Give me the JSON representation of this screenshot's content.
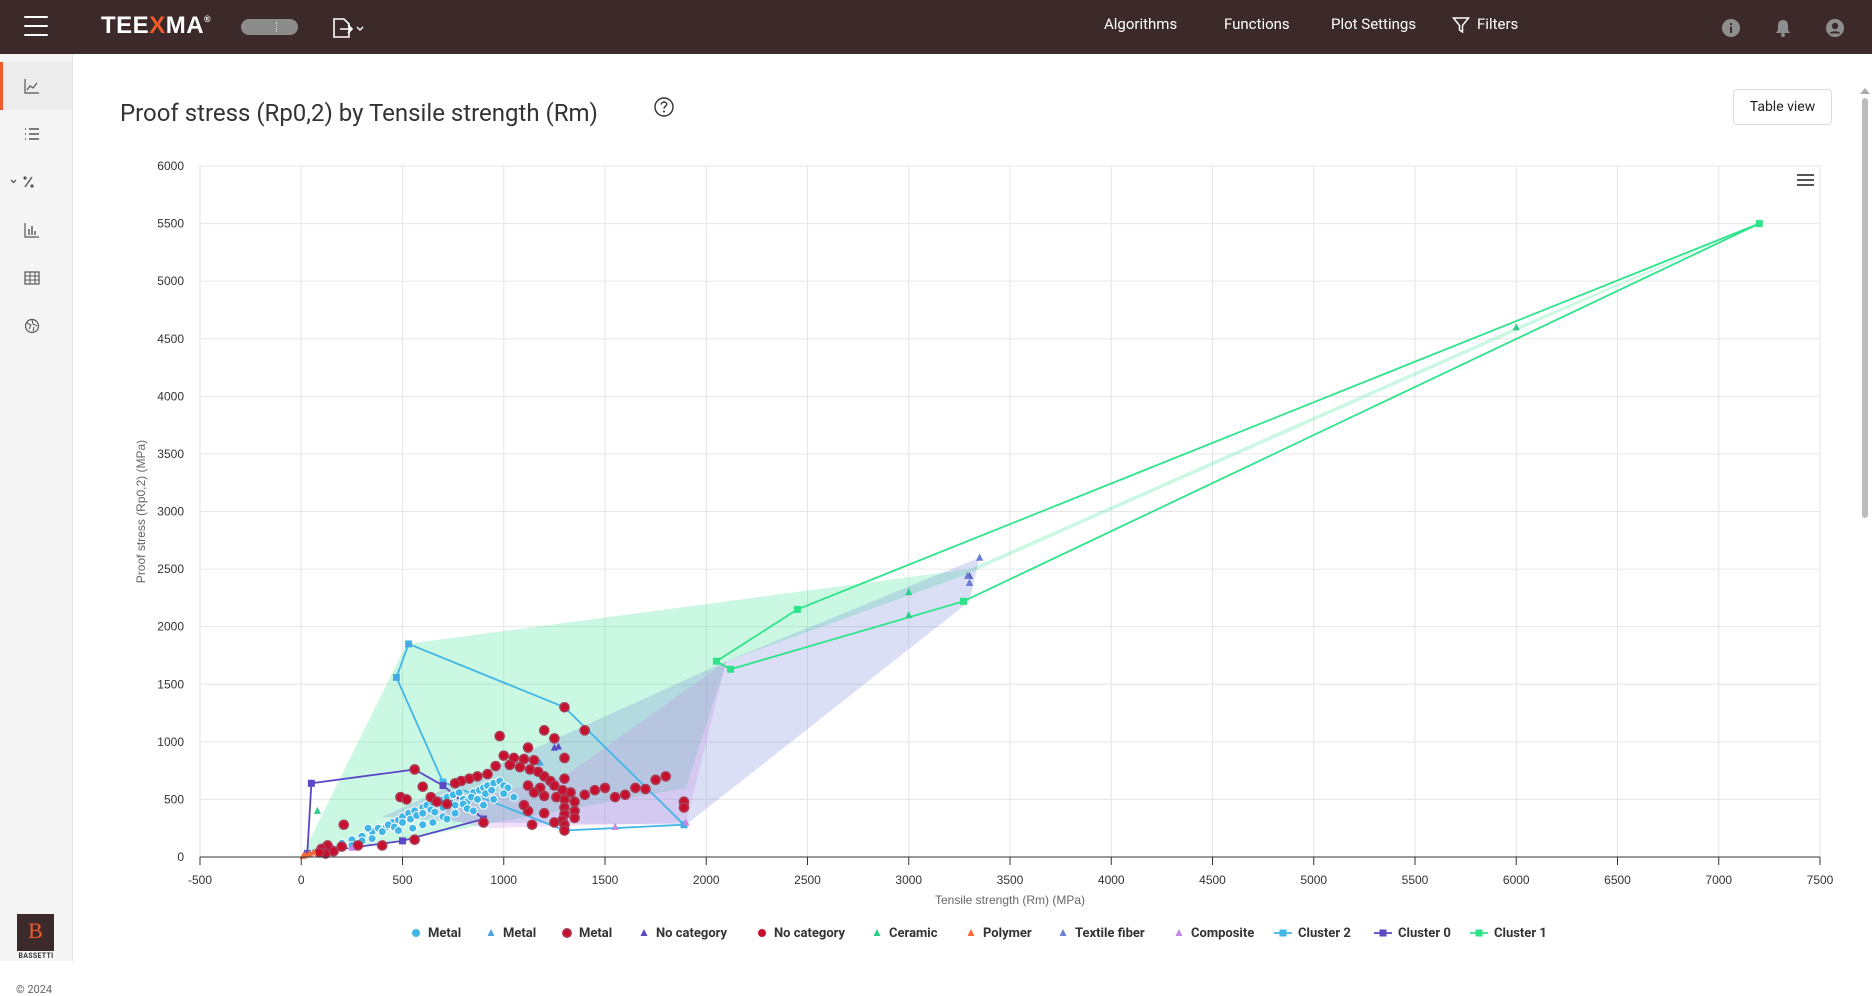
{
  "header": {
    "logo": {
      "pre": "TEE",
      "x": "X",
      "post": "MA",
      "reg": "®"
    },
    "nav": [
      "Algorithms",
      "Functions",
      "Plot Settings",
      "Filters"
    ]
  },
  "sidebar": {
    "brand_letter": "B",
    "brand_name": "BASSETTI",
    "copyright": "© 2024"
  },
  "page": {
    "title": "Proof stress (Rp0,2) by Tensile strength (Rm)",
    "table_view_label": "Table view"
  },
  "colors": {
    "metal": "#41b6e6",
    "metal_tri": "#4aa5e3",
    "metal_ring": "#a93a52",
    "no_cat_tri": "#5a48c4",
    "no_cat_circle": "#c8102e",
    "ceramic": "#2ecc8a",
    "polymer": "#f26b38",
    "textile": "#6b7fd7",
    "composite": "#c287e8",
    "cluster2": "#41b6e6",
    "cluster0": "#5a48c4",
    "cluster1": "#2ee48a"
  },
  "chart_data": {
    "type": "scatter",
    "title": "",
    "xlabel": "Tensile strength (Rm) (MPa)",
    "ylabel": "Proof stress (Rp0,2) (MPa)",
    "xlim": [
      -500,
      7500
    ],
    "ylim": [
      0,
      6000
    ],
    "xticks": [
      -500,
      0,
      500,
      1000,
      1500,
      2000,
      2500,
      3000,
      3500,
      4000,
      4500,
      5000,
      5500,
      6000,
      6500,
      7000,
      7500
    ],
    "yticks": [
      0,
      500,
      1000,
      1500,
      2000,
      2500,
      3000,
      3500,
      4000,
      4500,
      5000,
      5500,
      6000
    ],
    "legend": [
      {
        "name": "Metal",
        "marker": "circle",
        "color": "#41b6e6"
      },
      {
        "name": "Metal",
        "marker": "triangle",
        "color": "#4aa5e3"
      },
      {
        "name": "Metal",
        "marker": "ring",
        "color": "#a93a52"
      },
      {
        "name": "No category",
        "marker": "triangle",
        "color": "#5a48c4"
      },
      {
        "name": "No category",
        "marker": "circle",
        "color": "#c8102e"
      },
      {
        "name": "Ceramic",
        "marker": "triangle",
        "color": "#2ecc8a"
      },
      {
        "name": "Polymer",
        "marker": "triangle",
        "color": "#f26b38"
      },
      {
        "name": "Textile fiber",
        "marker": "triangle",
        "color": "#6b7fd7"
      },
      {
        "name": "Composite",
        "marker": "triangle",
        "color": "#c287e8"
      },
      {
        "name": "Cluster 2",
        "marker": "line-square",
        "color": "#41b6e6"
      },
      {
        "name": "Cluster 0",
        "marker": "line-square",
        "color": "#5a48c4"
      },
      {
        "name": "Cluster 1",
        "marker": "line-square",
        "color": "#2ee48a"
      }
    ],
    "clusters": [
      {
        "name": "Cluster 1",
        "color": "#2ee48a",
        "points": [
          [
            2050,
            1700
          ],
          [
            2450,
            2150
          ],
          [
            7200,
            5500
          ],
          [
            3270,
            2220
          ],
          [
            2120,
            1630
          ]
        ]
      },
      {
        "name": "Cluster 2",
        "color": "#41b6e6",
        "points": [
          [
            530,
            1850
          ],
          [
            1300,
            1300
          ],
          [
            1890,
            280
          ],
          [
            1300,
            230
          ],
          [
            700,
            650
          ],
          [
            470,
            1560
          ]
        ]
      },
      {
        "name": "Cluster 0",
        "color": "#5a48c4",
        "points": [
          [
            50,
            640
          ],
          [
            560,
            760
          ],
          [
            700,
            620
          ],
          [
            900,
            330
          ],
          [
            500,
            140
          ],
          [
            30,
            30
          ]
        ]
      }
    ],
    "shaded_regions": [
      {
        "color": "#2ee48a",
        "points": [
          [
            0,
            0
          ],
          [
            520,
            1850
          ],
          [
            3300,
            2500
          ],
          [
            6000,
            4600
          ],
          [
            7200,
            5500
          ],
          [
            3280,
            2450
          ],
          [
            2100,
            1700
          ],
          [
            1900,
            600
          ],
          [
            400,
            120
          ]
        ]
      },
      {
        "color": "#6b7fd7",
        "points": [
          [
            400,
            350
          ],
          [
            1100,
            900
          ],
          [
            2100,
            1700
          ],
          [
            3350,
            2600
          ],
          [
            3300,
            2220
          ],
          [
            1900,
            280
          ],
          [
            800,
            300
          ]
        ]
      },
      {
        "color": "#c287e8",
        "points": [
          [
            600,
            400
          ],
          [
            1300,
            700
          ],
          [
            2100,
            1700
          ],
          [
            1900,
            300
          ],
          [
            900,
            250
          ]
        ]
      }
    ],
    "series": [
      {
        "name": "Metal",
        "marker": "circle",
        "color": "#41b6e6",
        "points": [
          [
            150,
            80
          ],
          [
            200,
            120
          ],
          [
            250,
            150
          ],
          [
            300,
            180
          ],
          [
            350,
            220
          ],
          [
            380,
            250
          ],
          [
            420,
            260
          ],
          [
            450,
            300
          ],
          [
            480,
            320
          ],
          [
            500,
            350
          ],
          [
            530,
            380
          ],
          [
            560,
            400
          ],
          [
            600,
            430
          ],
          [
            620,
            450
          ],
          [
            650,
            470
          ],
          [
            680,
            480
          ],
          [
            700,
            500
          ],
          [
            720,
            520
          ],
          [
            750,
            540
          ],
          [
            780,
            560
          ],
          [
            800,
            500
          ],
          [
            820,
            480
          ],
          [
            850,
            560
          ],
          [
            880,
            580
          ],
          [
            900,
            600
          ],
          [
            920,
            620
          ],
          [
            950,
            640
          ],
          [
            980,
            660
          ],
          [
            1000,
            620
          ],
          [
            1020,
            600
          ],
          [
            400,
            220
          ],
          [
            430,
            280
          ],
          [
            460,
            260
          ],
          [
            500,
            300
          ],
          [
            540,
            330
          ],
          [
            570,
            360
          ],
          [
            600,
            380
          ],
          [
            640,
            410
          ],
          [
            660,
            390
          ],
          [
            700,
            430
          ],
          [
            740,
            470
          ],
          [
            760,
            450
          ],
          [
            800,
            460
          ],
          [
            840,
            520
          ],
          [
            870,
            500
          ],
          [
            910,
            550
          ],
          [
            940,
            580
          ],
          [
            250,
            100
          ],
          [
            300,
            140
          ],
          [
            350,
            160
          ],
          [
            550,
            250
          ],
          [
            650,
            300
          ],
          [
            700,
            350
          ],
          [
            760,
            380
          ],
          [
            820,
            420
          ],
          [
            900,
            450
          ],
          [
            950,
            500
          ],
          [
            1000,
            550
          ],
          [
            1050,
            520
          ],
          [
            330,
            250
          ],
          [
            480,
            230
          ],
          [
            600,
            280
          ],
          [
            720,
            330
          ],
          [
            850,
            400
          ]
        ]
      },
      {
        "name": "Metal (triangle)",
        "marker": "triangle",
        "color": "#4aa5e3",
        "points": [
          [
            530,
            1850
          ],
          [
            470,
            1560
          ],
          [
            1890,
            280
          ],
          [
            1300,
            230
          ],
          [
            1180,
            820
          ],
          [
            1250,
            950
          ]
        ]
      },
      {
        "name": "No category",
        "marker": "circle",
        "color": "#c8102e",
        "points": [
          [
            1300,
            1300
          ],
          [
            980,
            1050
          ],
          [
            1200,
            1100
          ],
          [
            1400,
            1100
          ],
          [
            1250,
            1030
          ],
          [
            1120,
            950
          ],
          [
            1000,
            880
          ],
          [
            1050,
            860
          ],
          [
            1100,
            850
          ],
          [
            1150,
            840
          ],
          [
            1300,
            860
          ],
          [
            1030,
            800
          ],
          [
            960,
            790
          ],
          [
            920,
            720
          ],
          [
            870,
            700
          ],
          [
            830,
            680
          ],
          [
            790,
            660
          ],
          [
            760,
            640
          ],
          [
            1080,
            780
          ],
          [
            1130,
            760
          ],
          [
            1170,
            740
          ],
          [
            1200,
            700
          ],
          [
            1230,
            660
          ],
          [
            1300,
            680
          ],
          [
            1330,
            560
          ],
          [
            1400,
            540
          ],
          [
            1450,
            580
          ],
          [
            1500,
            600
          ],
          [
            1550,
            520
          ],
          [
            1600,
            540
          ],
          [
            1650,
            600
          ],
          [
            1700,
            590
          ],
          [
            1750,
            670
          ],
          [
            1800,
            700
          ],
          [
            1890,
            480
          ],
          [
            1890,
            430
          ],
          [
            1120,
            620
          ],
          [
            1180,
            600
          ],
          [
            1250,
            620
          ],
          [
            1290,
            580
          ],
          [
            1150,
            560
          ],
          [
            1200,
            530
          ],
          [
            1260,
            520
          ],
          [
            1300,
            500
          ],
          [
            1350,
            480
          ],
          [
            1300,
            430
          ],
          [
            1350,
            400
          ],
          [
            1300,
            370
          ],
          [
            1350,
            340
          ],
          [
            1290,
            320
          ],
          [
            1250,
            300
          ],
          [
            1300,
            280
          ],
          [
            1300,
            230
          ],
          [
            1200,
            380
          ],
          [
            1120,
            400
          ],
          [
            1100,
            450
          ],
          [
            1140,
            280
          ],
          [
            560,
            760
          ],
          [
            600,
            610
          ],
          [
            490,
            520
          ],
          [
            210,
            280
          ],
          [
            520,
            500
          ],
          [
            640,
            520
          ],
          [
            670,
            480
          ],
          [
            720,
            460
          ],
          [
            900,
            300
          ],
          [
            560,
            150
          ],
          [
            400,
            100
          ],
          [
            280,
            100
          ],
          [
            130,
            100
          ],
          [
            100,
            70
          ],
          [
            160,
            50
          ],
          [
            120,
            30
          ],
          [
            90,
            40
          ],
          [
            200,
            90
          ]
        ]
      },
      {
        "name": "No category (triangle)",
        "marker": "triangle",
        "color": "#5a48c4",
        "points": [
          [
            50,
            640
          ],
          [
            3300,
            2380
          ],
          [
            3300,
            2440
          ],
          [
            3350,
            2600
          ],
          [
            1250,
            950
          ],
          [
            1270,
            960
          ]
        ]
      },
      {
        "name": "Ceramic",
        "marker": "triangle",
        "color": "#2ecc8a",
        "points": [
          [
            80,
            400
          ],
          [
            3000,
            2300
          ],
          [
            3000,
            2100
          ],
          [
            6000,
            4600
          ],
          [
            1550,
            260
          ]
        ]
      },
      {
        "name": "Polymer",
        "marker": "triangle",
        "color": "#f26b38",
        "points": [
          [
            20,
            20
          ],
          [
            40,
            30
          ],
          [
            60,
            40
          ],
          [
            10,
            10
          ]
        ]
      },
      {
        "name": "Textile fiber",
        "marker": "triangle",
        "color": "#6b7fd7",
        "points": [
          [
            3300,
            2380
          ],
          [
            3290,
            2440
          ],
          [
            3350,
            2600
          ]
        ]
      },
      {
        "name": "Composite",
        "marker": "triangle",
        "color": "#c287e8",
        "points": [
          [
            1550,
            260
          ],
          [
            1900,
            300
          ],
          [
            250,
            80
          ]
        ]
      }
    ]
  }
}
